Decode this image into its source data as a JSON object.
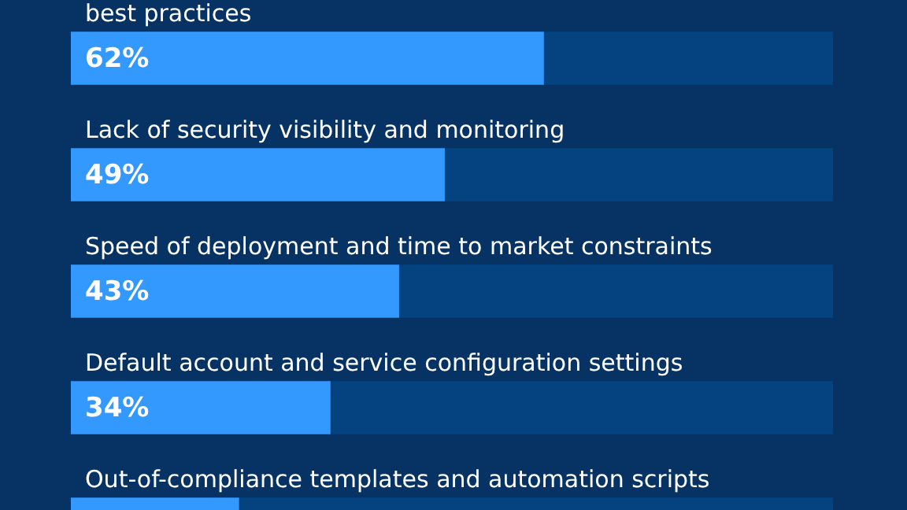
{
  "chart_data": {
    "type": "bar",
    "orientation": "horizontal",
    "stacked": true,
    "categories": [
      "best practices",
      "Lack of security visibility and monitoring",
      "Speed of deployment and time to market constraints",
      "Default account and service configuration settings",
      "Out-of-compliance templates and automation scripts"
    ],
    "series": [
      {
        "color": "#3399ff",
        "values": [
          62,
          49,
          43,
          34,
          22
        ],
        "value_labels": [
          "62%",
          "49%",
          "43%",
          "34%",
          null
        ]
      },
      {
        "color": "#04437f",
        "values": [
          38,
          51,
          57,
          66,
          78
        ]
      }
    ],
    "xlim": [
      0,
      100
    ]
  }
}
